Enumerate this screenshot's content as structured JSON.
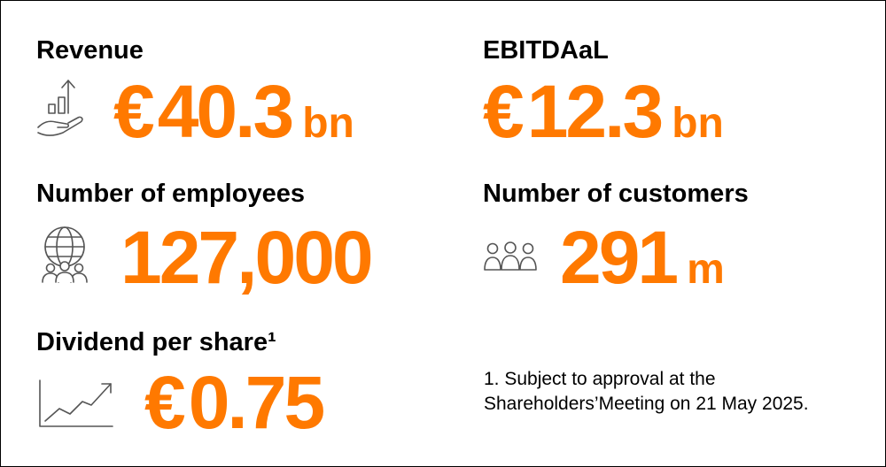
{
  "colors": {
    "accent": "#ff7900",
    "text": "#000000",
    "icon": "#555555"
  },
  "metrics": {
    "revenue": {
      "label": "Revenue",
      "currency": "€",
      "number": "40.3",
      "unit": "bn",
      "icon": "growth-hand-icon"
    },
    "ebitdaal": {
      "label": "EBITDAaL",
      "currency": "€",
      "number": "12.3",
      "unit": "bn"
    },
    "employees": {
      "label": "Number of employees",
      "number": "127,000",
      "icon": "globe-people-icon"
    },
    "customers": {
      "label": "Number of customers",
      "number": "291",
      "unit": "m",
      "icon": "people-group-icon"
    },
    "dividend": {
      "label": "Dividend per share¹",
      "currency": "€",
      "number": "0.75",
      "icon": "trend-up-chart-icon"
    }
  },
  "footnote": {
    "line1": "1. Subject to approval at the",
    "line2": "Shareholders’Meeting on 21 May 2025."
  }
}
